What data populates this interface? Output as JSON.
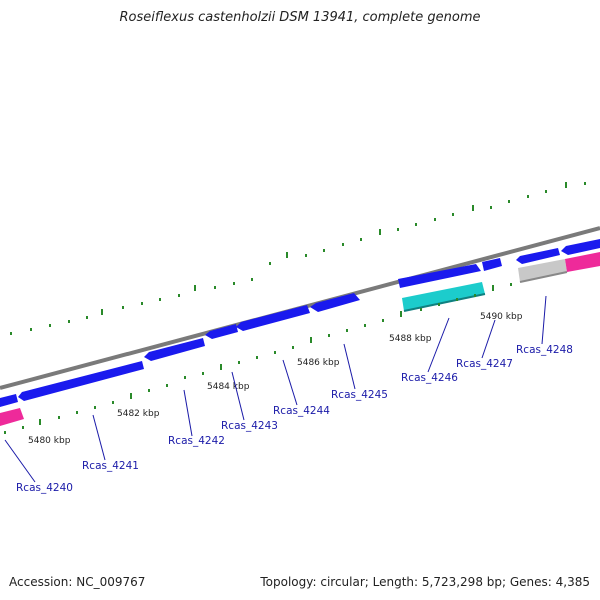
{
  "title": "Roseiflexus castenholzii DSM 13941, complete genome",
  "accession": "Accession: NC_009767",
  "summary": "Topology: circular; Length: 5,723,298 bp; Genes: 4,385",
  "kbp_ticks": [
    "5480 kbp",
    "5482 kbp",
    "5484 kbp",
    "5486 kbp",
    "5488 kbp",
    "5490 kbp"
  ],
  "gene_labels": [
    "Rcas_4240",
    "Rcas_4241",
    "Rcas_4242",
    "Rcas_4243",
    "Rcas_4244",
    "Rcas_4245",
    "Rcas_4246",
    "Rcas_4247",
    "Rcas_4248"
  ],
  "colors": {
    "backbone": "#7a7a7a",
    "gene": "#1a1aee",
    "rna_cyan": "#1ccccc",
    "pink": "#ee2a9a",
    "gray_feature": "#c8c8c8",
    "tick": "#2a8a2a",
    "label": "#1a1aa8"
  }
}
